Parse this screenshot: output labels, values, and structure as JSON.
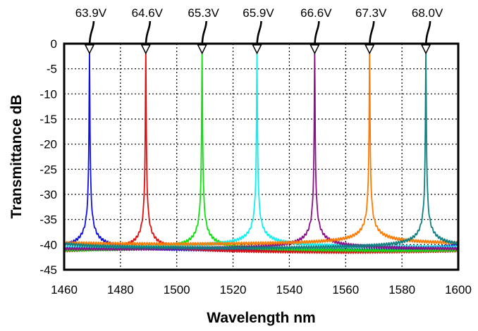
{
  "chart_data": {
    "type": "line",
    "title": "",
    "xlabel": "Wavelength nm",
    "ylabel": "Transmittance dB",
    "xlim": [
      1460,
      1600
    ],
    "ylim": [
      -45,
      0
    ],
    "xticks": [
      1460,
      1480,
      1500,
      1520,
      1540,
      1560,
      1580,
      1600
    ],
    "yticks": [
      0,
      -5,
      -10,
      -15,
      -20,
      -25,
      -30,
      -35,
      -40,
      -45
    ],
    "grid": "dotted",
    "series": [
      {
        "name": "63.9V",
        "color": "#1010e0",
        "peak_x": 1469,
        "peak_y": -1.5,
        "baseline": -41.5
      },
      {
        "name": "64.6V",
        "color": "#e01010",
        "peak_x": 1489,
        "peak_y": -1.5,
        "baseline": -41.8
      },
      {
        "name": "65.3V",
        "color": "#10e010",
        "peak_x": 1509,
        "peak_y": -1.5,
        "baseline": -41.5
      },
      {
        "name": "65.9V",
        "color": "#10f0f0",
        "peak_x": 1528.5,
        "peak_y": -1.5,
        "baseline": -40.8
      },
      {
        "name": "66.6V",
        "color": "#8a108a",
        "peak_x": 1549,
        "peak_y": -1.5,
        "baseline": -41.2
      },
      {
        "name": "67.3V",
        "color": "#ff7a00",
        "peak_x": 1568.5,
        "peak_y": -1.5,
        "baseline": -40.2
      },
      {
        "name": "68.0V",
        "color": "#108080",
        "peak_x": 1588.5,
        "peak_y": -1.5,
        "baseline": -41.0
      }
    ]
  }
}
